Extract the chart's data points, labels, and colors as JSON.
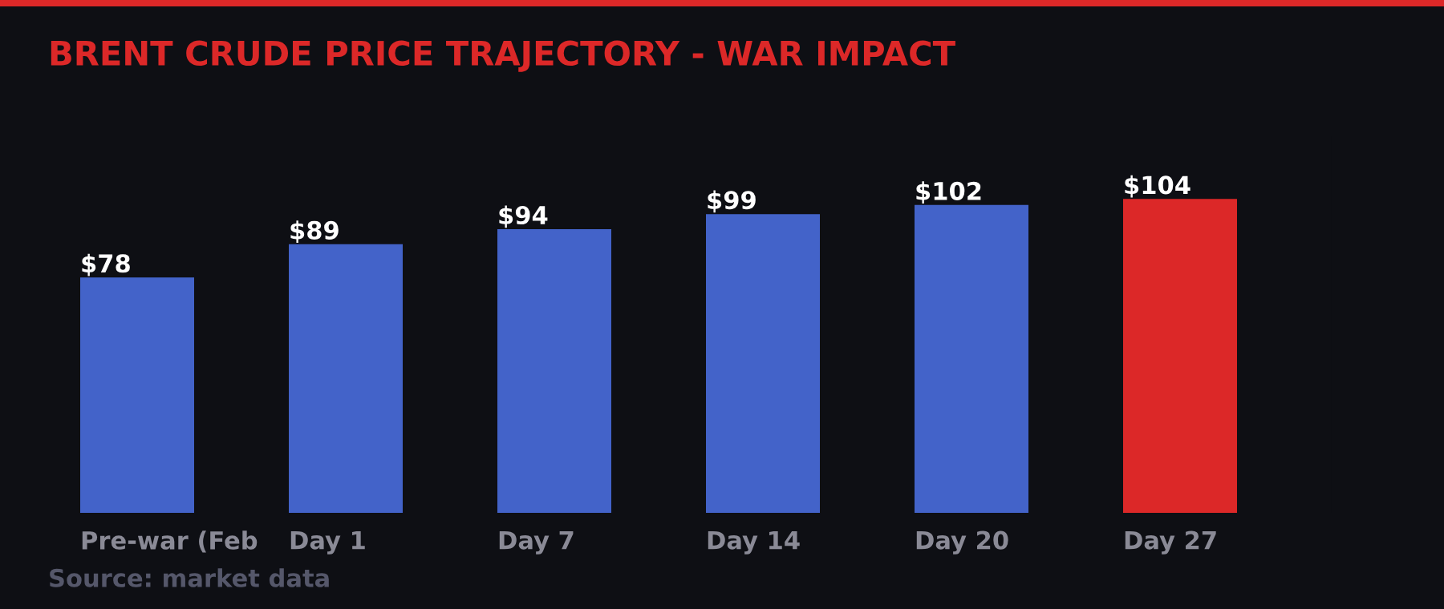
{
  "chart_data": {
    "type": "bar",
    "title": "BRENT CRUDE PRICE TRAJECTORY - WAR IMPACT",
    "categories": [
      "Pre-war (Feb",
      "Day 1",
      "Day 7",
      "Day 14",
      "Day 20",
      "Day 27"
    ],
    "values": [
      78,
      89,
      94,
      99,
      102,
      104
    ],
    "colors": [
      "#4363c9",
      "#4363c9",
      "#4363c9",
      "#4363c9",
      "#4363c9",
      "#dc2828"
    ],
    "value_labels": [
      "$78",
      "$89",
      "$94",
      "$99",
      "$102",
      "$104"
    ],
    "annotations": [
      "Source: market data"
    ],
    "grid": false,
    "legend": false
  }
}
